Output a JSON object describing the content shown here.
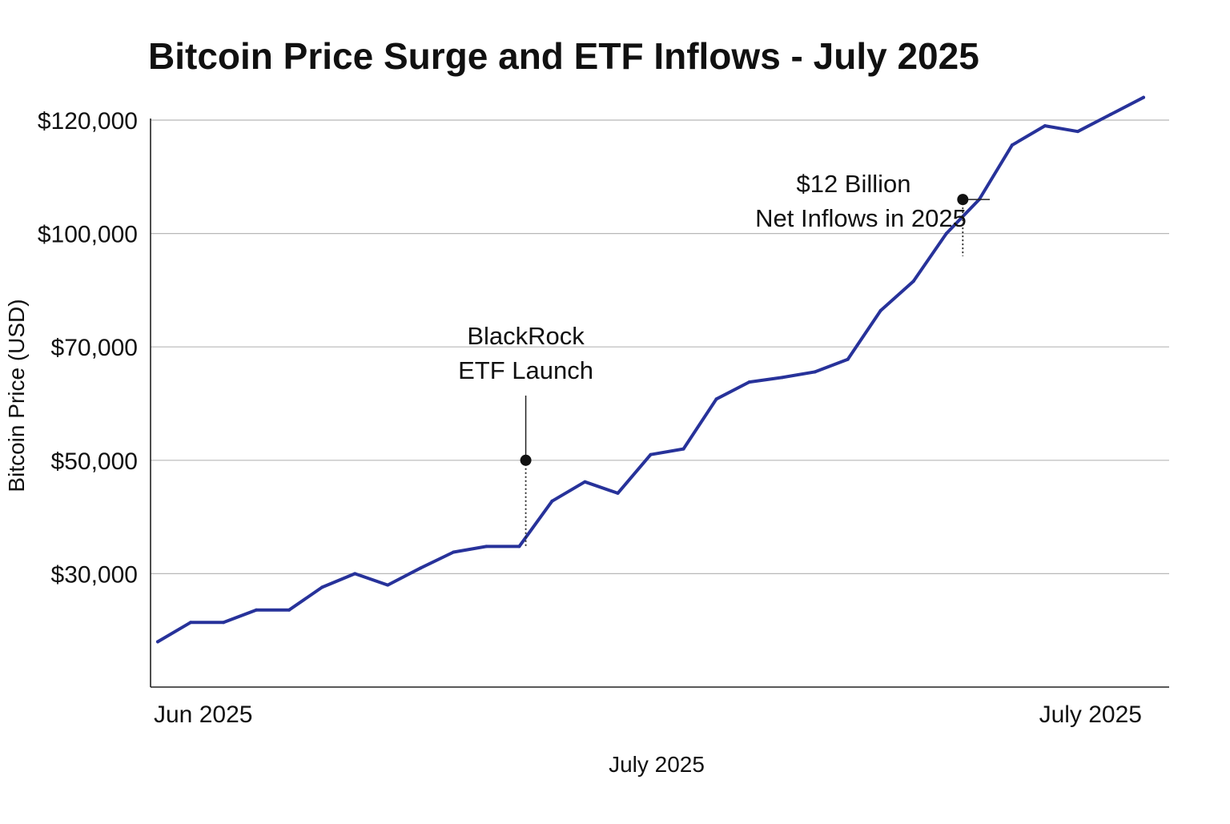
{
  "chart_data": {
    "type": "line",
    "title": "Bitcoin Price Surge and ETF  Inflows - July 2025",
    "xlabel": "July 2025",
    "ylabel": "Bitcoin Price (USD)",
    "x_tick_labels": [
      {
        "label": "Jun 2025",
        "x": 0
      },
      {
        "label": "July 2025",
        "x": 30
      }
    ],
    "y_ticks": [
      {
        "label": "$120,000",
        "rank": 5
      },
      {
        "label": "$100,000",
        "rank": 4
      },
      {
        "label": "$70,000",
        "rank": 3
      },
      {
        "label": "$50,000",
        "rank": 2
      },
      {
        "label": "$30,000",
        "rank": 1
      }
    ],
    "y_rank_range": [
      0,
      5
    ],
    "grid": true,
    "series": [
      {
        "name": "Bitcoin Price",
        "color": "#27329a",
        "x": [
          0,
          1,
          2,
          3,
          4,
          5,
          6,
          7,
          8,
          9,
          10,
          11,
          12,
          13,
          14,
          15,
          16,
          17,
          18,
          19,
          20,
          21,
          22,
          23,
          24,
          25,
          26,
          27,
          28,
          29,
          30
        ],
        "y_rank": [
          0.4,
          0.57,
          0.57,
          0.68,
          0.68,
          0.88,
          1.0,
          0.9,
          1.05,
          1.19,
          1.24,
          1.24,
          1.64,
          1.81,
          1.71,
          2.05,
          2.1,
          2.54,
          2.69,
          2.73,
          2.78,
          2.89,
          3.32,
          3.58,
          4.0,
          4.3,
          4.78,
          4.95,
          4.9,
          5.05,
          5.2
        ]
      }
    ],
    "annotations": [
      {
        "lines": [
          "BlackRock",
          "ETF Launch"
        ],
        "x": 11.2,
        "point_rank": 2.0,
        "line_to_rank": 1.24
      },
      {
        "lines": [
          "$12 Billion",
          "Net Inflows in 2025"
        ],
        "x": 24.5,
        "point_rank": 4.3,
        "line_to_rank": 3.8
      }
    ]
  }
}
